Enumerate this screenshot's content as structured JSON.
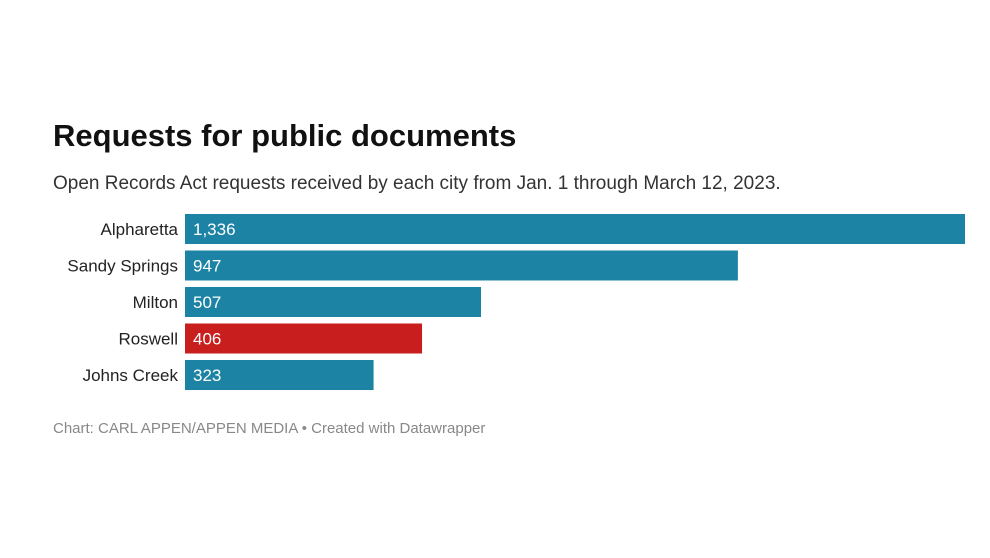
{
  "title": "Requests for public documents",
  "subtitle": "Open Records Act requests received by each city from Jan. 1 through March 12, 2023.",
  "footer": {
    "source": "Chart: CARL APPEN/APPEN MEDIA",
    "separator": " • ",
    "credit": "Created with Datawrapper"
  },
  "colors": {
    "default_bar": "#1d83a4",
    "highlight_bar": "#c91e1e",
    "value_label": "#ffffff",
    "category_label": "#222222"
  },
  "chart_data": {
    "type": "bar",
    "orientation": "horizontal",
    "categories": [
      "Alpharetta",
      "Sandy Springs",
      "Milton",
      "Roswell",
      "Johns Creek"
    ],
    "values": [
      1336,
      947,
      507,
      406,
      323
    ],
    "value_labels": [
      "1,336",
      "947",
      "507",
      "406",
      "323"
    ],
    "highlighted": [
      "Roswell"
    ],
    "title": "Requests for public documents",
    "xlabel": "",
    "ylabel": "",
    "xlim": [
      0,
      1336
    ],
    "grid": false,
    "legend": "none"
  }
}
